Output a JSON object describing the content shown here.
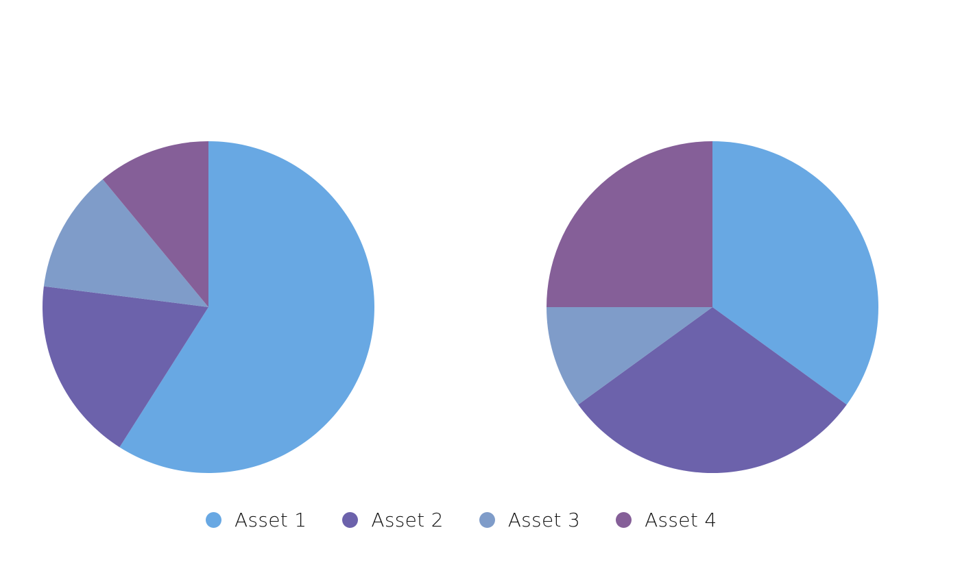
{
  "chart_data": [
    {
      "type": "pie",
      "categories": [
        "Asset 1",
        "Asset 2",
        "Asset 3",
        "Asset 4"
      ],
      "values": [
        59,
        18,
        12,
        11
      ],
      "colors": [
        "#68a8e3",
        "#6c62ab",
        "#7f9cc9",
        "#855f98"
      ]
    },
    {
      "type": "pie",
      "categories": [
        "Asset 1",
        "Asset 2",
        "Asset 3",
        "Asset 4"
      ],
      "values": [
        35,
        30,
        10,
        25
      ],
      "colors": [
        "#68a8e3",
        "#6c62ab",
        "#7f9cc9",
        "#855f98"
      ]
    }
  ],
  "legend": {
    "placement": "bottom",
    "items": [
      {
        "label": "Asset 1",
        "color": "#68a8e3"
      },
      {
        "label": "Asset 2",
        "color": "#6c62ab"
      },
      {
        "label": "Asset 3",
        "color": "#7f9cc9"
      },
      {
        "label": "Asset 4",
        "color": "#855f98"
      }
    ]
  }
}
